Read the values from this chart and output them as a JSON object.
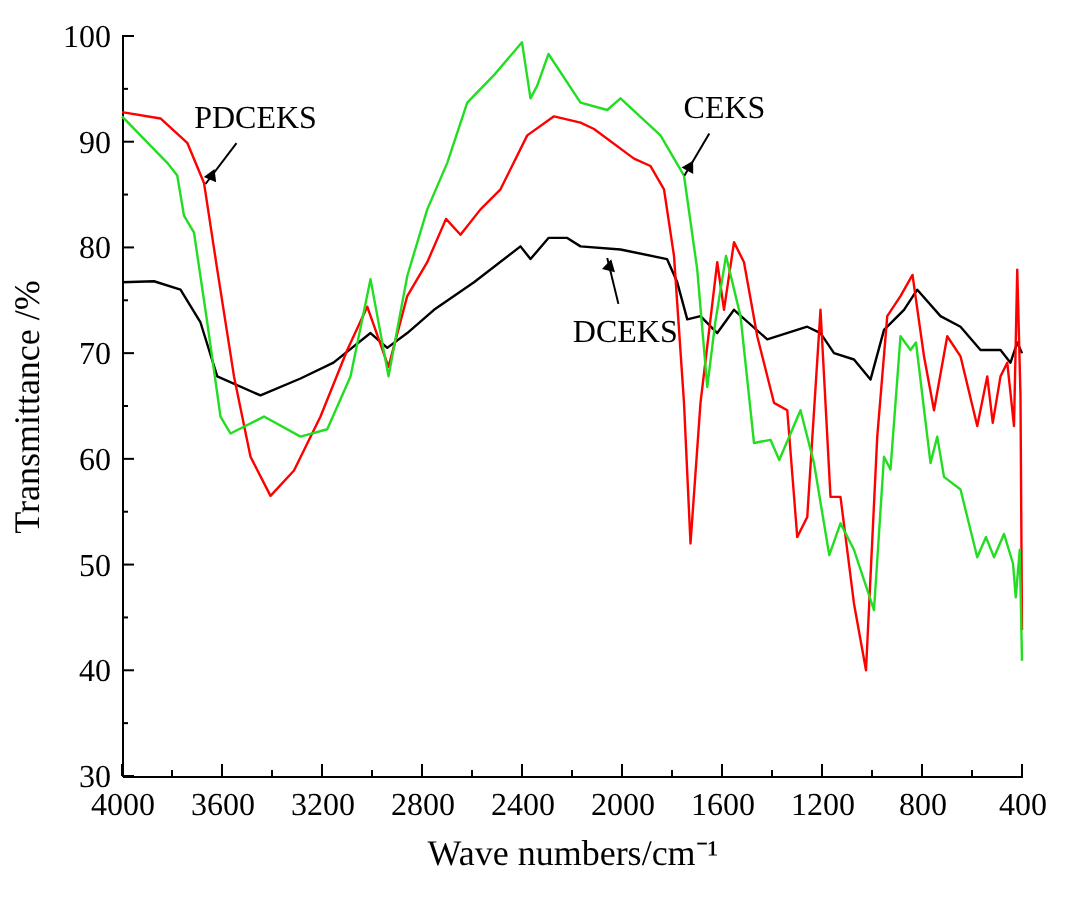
{
  "chart_data": {
    "type": "line",
    "xlabel": "Wave numbers/cm⁻¹",
    "ylabel": "Transmittance /%",
    "xlim": [
      4000,
      400
    ],
    "ylim": [
      30,
      100
    ],
    "xticks": [
      4000,
      {
        "value": 3800,
        "label": null
      },
      3600,
      {
        "value": 3400,
        "label": null
      },
      3200,
      {
        "value": 3000,
        "label": null
      },
      2800,
      {
        "value": 2600,
        "label": null
      },
      2400,
      {
        "value": 2200,
        "label": null
      },
      2000,
      {
        "value": 1800,
        "label": null
      },
      1600,
      {
        "value": 1400,
        "label": null
      },
      1200,
      {
        "value": 1000,
        "label": null
      },
      800,
      {
        "value": 600,
        "label": null
      },
      400
    ],
    "yticks": [
      30,
      {
        "value": 35,
        "label": null
      },
      40,
      {
        "value": 45,
        "label": null
      },
      50,
      {
        "value": 55,
        "label": null
      },
      60,
      {
        "value": 65,
        "label": null
      },
      70,
      {
        "value": 75,
        "label": null
      },
      80,
      {
        "value": 85,
        "label": null
      },
      90,
      {
        "value": 95,
        "label": null
      },
      100
    ],
    "line_style": "solid",
    "series": [
      {
        "color": "#000000",
        "x": [
          4000,
          3872,
          3766,
          3686,
          3619,
          3446,
          3286,
          3154,
          3006,
          2939,
          2859,
          2752,
          2592,
          2406,
          2366,
          2294,
          2219,
          2166,
          2006,
          1820,
          1779,
          1739,
          1686,
          1619,
          1552,
          1419,
          1259,
          1206,
          1152,
          1072,
          1006,
          952,
          872,
          819,
          726,
          646,
          566,
          486,
          446,
          419,
          400
        ],
        "values": [
          76.7,
          76.8,
          76.0,
          72.9,
          67.8,
          66.0,
          67.6,
          69.1,
          71.9,
          70.5,
          71.9,
          74.1,
          76.7,
          80.1,
          78.9,
          80.9,
          80.9,
          80.1,
          79.8,
          78.9,
          76.7,
          73.2,
          73.5,
          71.9,
          74.1,
          71.3,
          72.5,
          71.9,
          70.0,
          69.4,
          67.5,
          72.2,
          74.1,
          76.0,
          73.5,
          72.5,
          70.3,
          70.3,
          69.1,
          71.0,
          70.0
        ]
      },
      {
        "color": "#ff0000",
        "x": [
          4000,
          3846,
          3739,
          3672,
          3619,
          3552,
          3486,
          3406,
          3312,
          3206,
          3099,
          3019,
          2934,
          2859,
          2779,
          2704,
          2646,
          2566,
          2486,
          2379,
          2272,
          2166,
          2112,
          1952,
          1886,
          1832,
          1792,
          1752,
          1726,
          1686,
          1619,
          1592,
          1552,
          1512,
          1459,
          1392,
          1339,
          1299,
          1259,
          1206,
          1166,
          1126,
          1072,
          1024,
          979,
          939,
          886,
          838,
          792,
          752,
          699,
          646,
          579,
          539,
          517,
          486,
          459,
          432,
          419,
          406,
          400
        ],
        "values": [
          92.8,
          92.2,
          89.9,
          86.1,
          77.9,
          67.8,
          60.2,
          56.5,
          58.9,
          64.0,
          70.3,
          74.4,
          68.7,
          75.4,
          78.6,
          82.7,
          81.2,
          83.6,
          85.5,
          90.6,
          92.4,
          91.8,
          91.2,
          88.4,
          87.7,
          85.5,
          79.2,
          65.3,
          52.0,
          65.3,
          78.6,
          74.1,
          80.5,
          78.6,
          71.6,
          65.3,
          64.6,
          52.6,
          54.5,
          74.1,
          56.4,
          56.4,
          46.3,
          40.0,
          62.1,
          73.5,
          75.4,
          77.4,
          69.7,
          64.6,
          71.6,
          69.7,
          63.1,
          67.8,
          63.4,
          67.8,
          69.1,
          63.1,
          77.9,
          65.9,
          43.8
        ]
      },
      {
        "color": "#22dd22",
        "x": [
          4000,
          3926,
          3819,
          3779,
          3752,
          3712,
          3659,
          3606,
          3566,
          3432,
          3286,
          3179,
          3086,
          3006,
          2934,
          2859,
          2779,
          2699,
          2619,
          2512,
          2400,
          2366,
          2339,
          2294,
          2166,
          2059,
          2006,
          1846,
          1752,
          1699,
          1659,
          1627,
          1584,
          1526,
          1472,
          1406,
          1371,
          1286,
          1232,
          1171,
          1126,
          1072,
          992,
          952,
          926,
          886,
          846,
          824,
          766,
          739,
          712,
          646,
          579,
          544,
          512,
          472,
          436,
          425,
          409,
          400
        ],
        "values": [
          92.4,
          90.6,
          88.0,
          86.8,
          83.0,
          81.4,
          72.9,
          64.0,
          62.4,
          64.0,
          62.1,
          62.8,
          67.8,
          77.0,
          67.8,
          77.3,
          83.6,
          88.0,
          93.7,
          96.3,
          99.4,
          94.1,
          95.3,
          98.3,
          93.7,
          93.0,
          94.1,
          90.6,
          86.8,
          77.9,
          66.8,
          72.9,
          79.2,
          73.5,
          61.5,
          61.8,
          59.9,
          64.6,
          59.6,
          50.9,
          53.9,
          51.4,
          45.7,
          60.2,
          59.0,
          71.6,
          70.3,
          71.0,
          59.6,
          62.1,
          58.3,
          57.1,
          50.7,
          52.6,
          50.7,
          52.9,
          50.1,
          46.9,
          51.4,
          40.9
        ]
      }
    ],
    "annotations": [
      {
        "text": "PDCEKS",
        "x": 3666,
        "y": 86.0
      },
      {
        "text": "CEKS",
        "x": 1750,
        "y": 86.8
      },
      {
        "text": "DCEKS",
        "x": 2059,
        "y": 79.0
      }
    ]
  }
}
